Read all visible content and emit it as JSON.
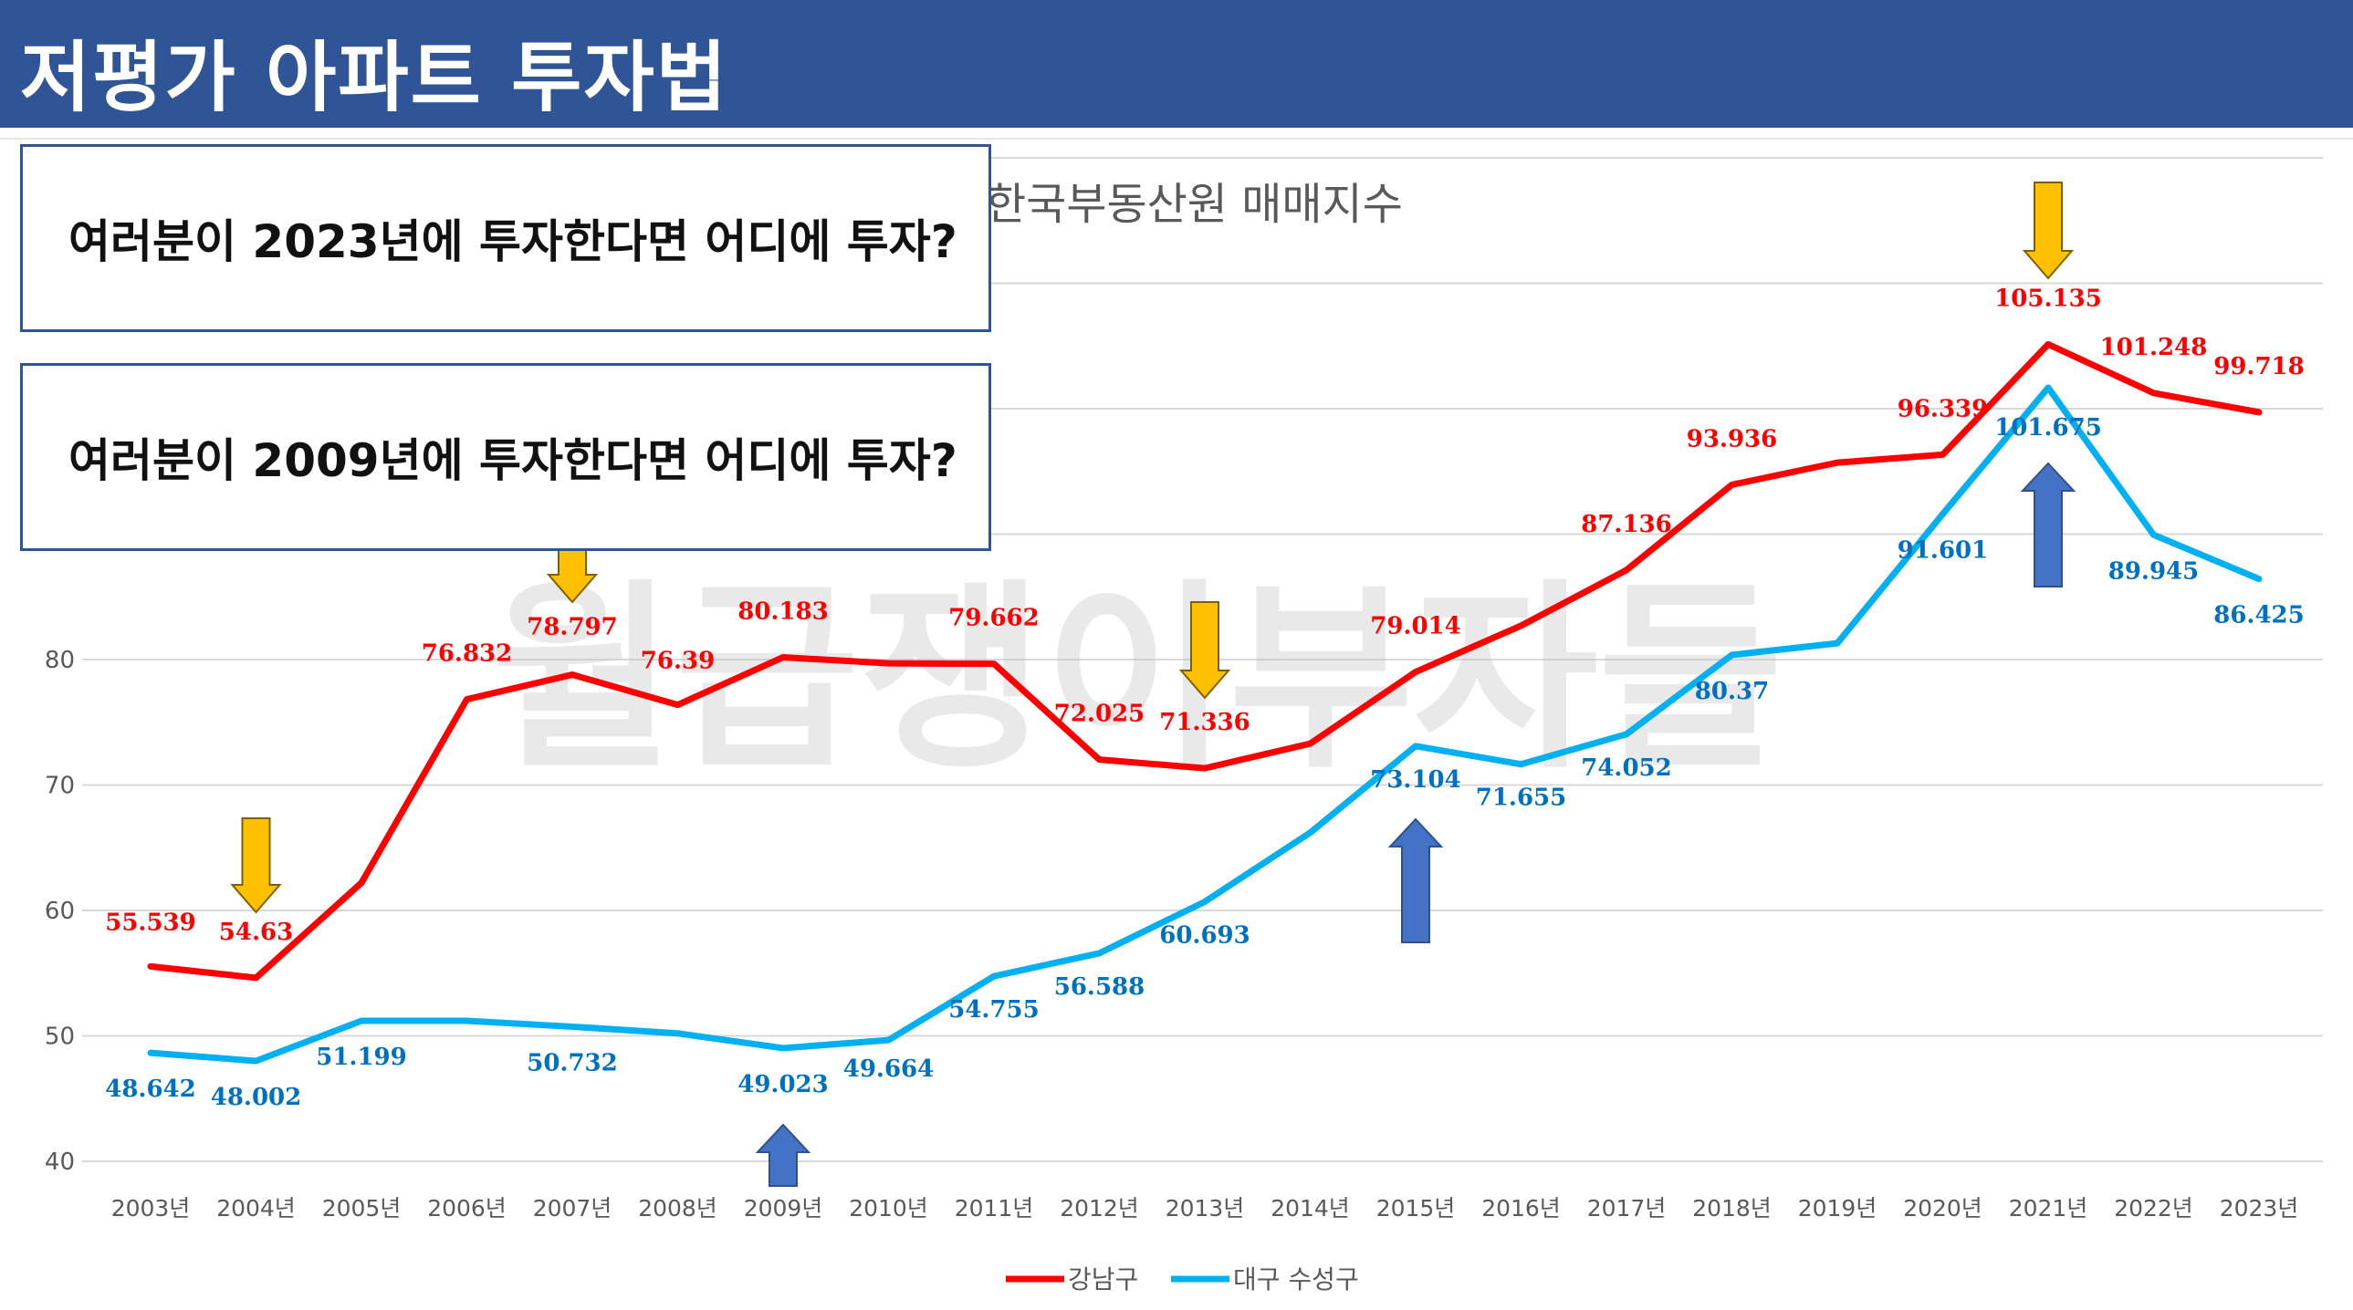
{
  "header": {
    "title": "저평가 아파트 투자법"
  },
  "questions": {
    "q1": "여러분이 2023년에 투자한다면 어디에 투자?",
    "q2": "여러분이 2009년에 투자한다면 어디에 투자?"
  },
  "watermark": "월급쟁이부자들",
  "colors": {
    "banner": "#2f5597",
    "gangnam": "#ff0000",
    "daegu": "#00b0f0",
    "daegu_label": "#0070c0",
    "down_arrow": "#ffc000",
    "up_arrow": "#4472c4"
  },
  "chart_data": {
    "type": "line",
    "title": "한국부동산원 매매지수",
    "categories": [
      "2003년",
      "2004년",
      "2005년",
      "2006년",
      "2007년",
      "2008년",
      "2009년",
      "2010년",
      "2011년",
      "2012년",
      "2013년",
      "2014년",
      "2015년",
      "2016년",
      "2017년",
      "2018년",
      "2019년",
      "2020년",
      "2021년",
      "2022년",
      "2023년"
    ],
    "series": [
      {
        "name": "강남구",
        "values": [
          55.539,
          54.63,
          62.2,
          76.832,
          78.797,
          76.39,
          80.183,
          79.7,
          79.662,
          72.025,
          71.336,
          73.3,
          79.014,
          82.7,
          87.136,
          93.936,
          95.7,
          96.339,
          105.135,
          101.248,
          99.718
        ],
        "labels": [
          "55.539",
          "54.63",
          "",
          "76.832",
          "78.797",
          "76.39",
          "80.183",
          "",
          "79.662",
          "72.025",
          "71.336",
          "",
          "79.014",
          "",
          "87.136",
          "93.936",
          "",
          "96.339",
          "105.135",
          "101.248",
          "99.718"
        ]
      },
      {
        "name": "대구 수성구",
        "values": [
          48.642,
          48.002,
          51.199,
          51.2,
          50.732,
          50.2,
          49.023,
          49.664,
          54.755,
          56.588,
          60.693,
          66.2,
          73.104,
          71.655,
          74.052,
          80.37,
          81.3,
          91.601,
          101.675,
          89.945,
          86.425
        ],
        "labels": [
          "48.642",
          "48.002",
          "51.199",
          "",
          "50.732",
          "",
          "49.023",
          "49.664",
          "54.755",
          "56.588",
          "60.693",
          "",
          "73.104",
          "71.655",
          "74.052",
          "80.37",
          "",
          "91.601",
          "101.675",
          "89.945",
          "86.425"
        ]
      }
    ],
    "yticks": [
      "40",
      "50",
      "60",
      "70",
      "80"
    ],
    "ylim": [
      40,
      115
    ],
    "grid": true,
    "legend_position": "bottom",
    "down_arrows": [
      "2004년",
      "2007년",
      "2013년",
      "2021년"
    ],
    "up_arrows": [
      "2009년",
      "2015년",
      "2021년"
    ]
  }
}
